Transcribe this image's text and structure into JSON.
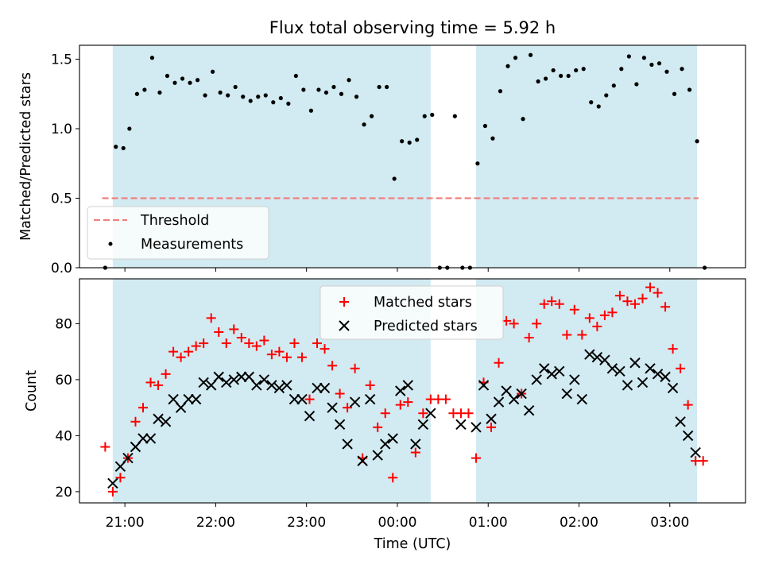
{
  "chart_data": [
    {
      "type": "scatter",
      "title": "Flux total observing time = 5.92 h",
      "xlabel": "",
      "ylabel": "Matched/Predicted stars",
      "xlim": [
        "20:30",
        "03:50"
      ],
      "ylim": [
        0,
        1.6
      ],
      "yticks": [
        0.0,
        0.5,
        1.0,
        1.5
      ],
      "ytick_labels": [
        "0.0",
        "0.5",
        "1.0",
        "1.5"
      ],
      "shaded_intervals": [
        [
          "20:52",
          "00:22"
        ],
        [
          "00:52",
          "03:18"
        ]
      ],
      "shade_color": "#add8e6",
      "legend": {
        "placement": "lower-left",
        "entries": [
          "Threshold",
          "Measurements"
        ]
      },
      "threshold": {
        "name": "Threshold",
        "value": 0.5,
        "x_range": [
          "20:45",
          "03:19"
        ],
        "color": "#f08080"
      },
      "series": [
        {
          "name": "Measurements",
          "color": "#000000",
          "points": [
            [
              "20:47",
              0.0
            ],
            [
              "20:54",
              0.87
            ],
            [
              "20:59",
              0.86
            ],
            [
              "21:03",
              1.0
            ],
            [
              "21:08",
              1.25
            ],
            [
              "21:13",
              1.28
            ],
            [
              "21:18",
              1.51
            ],
            [
              "21:23",
              1.26
            ],
            [
              "21:28",
              1.38
            ],
            [
              "21:33",
              1.33
            ],
            [
              "21:38",
              1.36
            ],
            [
              "21:43",
              1.33
            ],
            [
              "21:48",
              1.35
            ],
            [
              "21:53",
              1.24
            ],
            [
              "21:58",
              1.41
            ],
            [
              "22:03",
              1.26
            ],
            [
              "22:08",
              1.24
            ],
            [
              "22:13",
              1.3
            ],
            [
              "22:18",
              1.23
            ],
            [
              "22:23",
              1.2
            ],
            [
              "22:28",
              1.23
            ],
            [
              "22:33",
              1.24
            ],
            [
              "22:38",
              1.19
            ],
            [
              "22:43",
              1.22
            ],
            [
              "22:48",
              1.18
            ],
            [
              "22:53",
              1.38
            ],
            [
              "22:58",
              1.28
            ],
            [
              "23:03",
              1.13
            ],
            [
              "23:08",
              1.28
            ],
            [
              "23:13",
              1.26
            ],
            [
              "23:18",
              1.3
            ],
            [
              "23:23",
              1.25
            ],
            [
              "23:28",
              1.35
            ],
            [
              "23:33",
              1.23
            ],
            [
              "23:38",
              1.03
            ],
            [
              "23:43",
              1.09
            ],
            [
              "23:48",
              1.3
            ],
            [
              "23:53",
              1.3
            ],
            [
              "23:58",
              0.64
            ],
            [
              "00:03",
              0.91
            ],
            [
              "00:08",
              0.9
            ],
            [
              "00:13",
              0.92
            ],
            [
              "00:18",
              1.09
            ],
            [
              "00:23",
              1.1
            ],
            [
              "00:28",
              0.0
            ],
            [
              "00:33",
              0.0
            ],
            [
              "00:38",
              1.09
            ],
            [
              "00:43",
              0.0
            ],
            [
              "00:48",
              0.0
            ],
            [
              "00:53",
              0.75
            ],
            [
              "00:58",
              1.02
            ],
            [
              "01:03",
              0.93
            ],
            [
              "01:08",
              1.27
            ],
            [
              "01:13",
              1.45
            ],
            [
              "01:18",
              1.51
            ],
            [
              "01:23",
              1.07
            ],
            [
              "01:28",
              1.53
            ],
            [
              "01:33",
              1.34
            ],
            [
              "01:38",
              1.36
            ],
            [
              "01:43",
              1.42
            ],
            [
              "01:48",
              1.38
            ],
            [
              "01:53",
              1.38
            ],
            [
              "01:58",
              1.42
            ],
            [
              "02:03",
              1.43
            ],
            [
              "02:08",
              1.19
            ],
            [
              "02:13",
              1.16
            ],
            [
              "02:18",
              1.24
            ],
            [
              "02:23",
              1.31
            ],
            [
              "02:28",
              1.43
            ],
            [
              "02:33",
              1.52
            ],
            [
              "02:38",
              1.32
            ],
            [
              "02:43",
              1.51
            ],
            [
              "02:48",
              1.46
            ],
            [
              "02:53",
              1.47
            ],
            [
              "02:58",
              1.41
            ],
            [
              "03:03",
              1.25
            ],
            [
              "03:08",
              1.43
            ],
            [
              "03:13",
              1.28
            ],
            [
              "03:18",
              0.91
            ],
            [
              "03:23",
              0.0
            ]
          ]
        }
      ]
    },
    {
      "type": "scatter",
      "title": "",
      "xlabel": "Time (UTC)",
      "ylabel": "Count",
      "xlim": [
        "20:30",
        "03:50"
      ],
      "ylim": [
        16,
        96
      ],
      "yticks": [
        20,
        40,
        60,
        80
      ],
      "ytick_labels": [
        "20",
        "40",
        "60",
        "80"
      ],
      "xticks": [
        "21:00",
        "22:00",
        "23:00",
        "00:00",
        "01:00",
        "02:00",
        "03:00"
      ],
      "xtick_labels": [
        "21:00",
        "22:00",
        "23:00",
        "00:00",
        "01:00",
        "02:00",
        "03:00"
      ],
      "shaded_intervals": [
        [
          "20:52",
          "00:22"
        ],
        [
          "00:52",
          "03:18"
        ]
      ],
      "shade_color": "#add8e6",
      "legend": {
        "placement": "upper-center",
        "entries": [
          "Matched stars",
          "Predicted stars"
        ]
      },
      "series": [
        {
          "name": "Matched stars",
          "marker": "plus",
          "color": "#ff0000",
          "points": [
            [
              "20:47",
              36
            ],
            [
              "20:52",
              20
            ],
            [
              "20:57",
              25
            ],
            [
              "21:02",
              32
            ],
            [
              "21:07",
              45
            ],
            [
              "21:12",
              50
            ],
            [
              "21:17",
              59
            ],
            [
              "21:22",
              58
            ],
            [
              "21:27",
              62
            ],
            [
              "21:32",
              70
            ],
            [
              "21:37",
              68
            ],
            [
              "21:42",
              70
            ],
            [
              "21:47",
              72
            ],
            [
              "21:52",
              73
            ],
            [
              "21:57",
              82
            ],
            [
              "22:02",
              77
            ],
            [
              "22:07",
              73
            ],
            [
              "22:12",
              78
            ],
            [
              "22:17",
              75
            ],
            [
              "22:22",
              73
            ],
            [
              "22:27",
              72
            ],
            [
              "22:32",
              74
            ],
            [
              "22:37",
              69
            ],
            [
              "22:42",
              70
            ],
            [
              "22:47",
              68
            ],
            [
              "22:52",
              73
            ],
            [
              "22:57",
              68
            ],
            [
              "23:02",
              53
            ],
            [
              "23:07",
              73
            ],
            [
              "23:12",
              71
            ],
            [
              "23:17",
              65
            ],
            [
              "23:22",
              55
            ],
            [
              "23:27",
              50
            ],
            [
              "23:32",
              64
            ],
            [
              "23:37",
              32
            ],
            [
              "23:42",
              58
            ],
            [
              "23:47",
              43
            ],
            [
              "23:52",
              48
            ],
            [
              "23:57",
              25
            ],
            [
              "00:02",
              51
            ],
            [
              "00:07",
              52
            ],
            [
              "00:12",
              34
            ],
            [
              "00:17",
              48
            ],
            [
              "00:22",
              53
            ],
            [
              "00:27",
              53
            ],
            [
              "00:32",
              53
            ],
            [
              "00:37",
              48
            ],
            [
              "00:42",
              48
            ],
            [
              "00:47",
              48
            ],
            [
              "00:52",
              32
            ],
            [
              "00:57",
              59
            ],
            [
              "01:02",
              43
            ],
            [
              "01:07",
              66
            ],
            [
              "01:12",
              81
            ],
            [
              "01:17",
              80
            ],
            [
              "01:22",
              55
            ],
            [
              "01:27",
              75
            ],
            [
              "01:32",
              80
            ],
            [
              "01:37",
              87
            ],
            [
              "01:42",
              88
            ],
            [
              "01:47",
              87
            ],
            [
              "01:52",
              76
            ],
            [
              "01:57",
              85
            ],
            [
              "02:02",
              76
            ],
            [
              "02:07",
              82
            ],
            [
              "02:12",
              79
            ],
            [
              "02:17",
              83
            ],
            [
              "02:22",
              84
            ],
            [
              "02:27",
              90
            ],
            [
              "02:32",
              88
            ],
            [
              "02:37",
              87
            ],
            [
              "02:42",
              89
            ],
            [
              "02:47",
              93
            ],
            [
              "02:52",
              91
            ],
            [
              "02:57",
              86
            ],
            [
              "03:02",
              71
            ],
            [
              "03:07",
              64
            ],
            [
              "03:12",
              51
            ],
            [
              "03:17",
              31
            ],
            [
              "03:22",
              31
            ]
          ]
        },
        {
          "name": "Predicted stars",
          "marker": "x",
          "color": "#000000",
          "points": [
            [
              "20:52",
              23
            ],
            [
              "20:57",
              29
            ],
            [
              "21:02",
              32
            ],
            [
              "21:07",
              36
            ],
            [
              "21:12",
              39
            ],
            [
              "21:17",
              39
            ],
            [
              "21:22",
              46
            ],
            [
              "21:27",
              45
            ],
            [
              "21:32",
              53
            ],
            [
              "21:37",
              50
            ],
            [
              "21:42",
              53
            ],
            [
              "21:47",
              53
            ],
            [
              "21:52",
              59
            ],
            [
              "21:57",
              58
            ],
            [
              "22:02",
              61
            ],
            [
              "22:07",
              59
            ],
            [
              "22:12",
              60
            ],
            [
              "22:17",
              61
            ],
            [
              "22:22",
              61
            ],
            [
              "22:27",
              58
            ],
            [
              "22:32",
              60
            ],
            [
              "22:37",
              58
            ],
            [
              "22:42",
              57
            ],
            [
              "22:47",
              58
            ],
            [
              "22:52",
              53
            ],
            [
              "22:57",
              53
            ],
            [
              "23:02",
              47
            ],
            [
              "23:07",
              57
            ],
            [
              "23:12",
              57
            ],
            [
              "23:17",
              50
            ],
            [
              "23:22",
              44
            ],
            [
              "23:27",
              37
            ],
            [
              "23:32",
              52
            ],
            [
              "23:37",
              31
            ],
            [
              "23:42",
              53
            ],
            [
              "23:47",
              33
            ],
            [
              "23:52",
              37
            ],
            [
              "23:57",
              39
            ],
            [
              "00:02",
              56
            ],
            [
              "00:07",
              58
            ],
            [
              "00:12",
              37
            ],
            [
              "00:17",
              44
            ],
            [
              "00:22",
              48
            ],
            [
              "00:42",
              44
            ],
            [
              "00:52",
              43
            ],
            [
              "00:57",
              58
            ],
            [
              "01:02",
              46
            ],
            [
              "01:07",
              52
            ],
            [
              "01:12",
              56
            ],
            [
              "01:17",
              53
            ],
            [
              "01:22",
              55
            ],
            [
              "01:27",
              49
            ],
            [
              "01:32",
              60
            ],
            [
              "01:37",
              64
            ],
            [
              "01:42",
              62
            ],
            [
              "01:47",
              63
            ],
            [
              "01:52",
              55
            ],
            [
              "01:57",
              60
            ],
            [
              "02:02",
              53
            ],
            [
              "02:07",
              69
            ],
            [
              "02:12",
              68
            ],
            [
              "02:17",
              67
            ],
            [
              "02:22",
              64
            ],
            [
              "02:27",
              63
            ],
            [
              "02:32",
              58
            ],
            [
              "02:37",
              66
            ],
            [
              "02:42",
              59
            ],
            [
              "02:47",
              64
            ],
            [
              "02:52",
              62
            ],
            [
              "02:57",
              61
            ],
            [
              "03:02",
              57
            ],
            [
              "03:07",
              45
            ],
            [
              "03:12",
              40
            ],
            [
              "03:17",
              34
            ]
          ]
        }
      ]
    }
  ]
}
